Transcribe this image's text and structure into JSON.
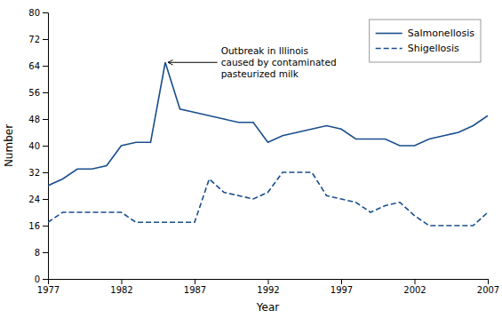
{
  "chart_data": {
    "type": "line",
    "x": [
      1977,
      1978,
      1979,
      1980,
      1981,
      1982,
      1983,
      1984,
      1985,
      1986,
      1987,
      1988,
      1989,
      1990,
      1991,
      1992,
      1993,
      1994,
      1995,
      1996,
      1997,
      1998,
      1999,
      2000,
      2001,
      2002,
      2003,
      2004,
      2005,
      2006,
      2007
    ],
    "series": [
      {
        "name": "Salmonellosis",
        "color": "#1A4E8C",
        "line_style": "solid",
        "values": [
          28,
          30,
          33,
          33,
          34,
          40,
          41,
          41,
          65,
          51,
          50,
          49,
          48,
          47,
          47,
          41,
          43,
          44,
          45,
          46,
          45,
          42,
          42,
          42,
          40,
          40,
          42,
          43,
          44,
          46,
          49
        ]
      },
      {
        "name": "Shigellosis",
        "color": "#1A4E8C",
        "line_style": "dashed",
        "values": [
          17,
          20,
          20,
          20,
          20,
          20,
          17,
          17,
          17,
          17,
          17,
          30,
          26,
          25,
          24,
          26,
          32,
          32,
          32,
          25,
          24,
          23,
          20,
          22,
          23,
          19,
          16,
          16,
          16,
          16,
          20
        ]
      }
    ],
    "xlabel": "Year",
    "ylabel": "Number",
    "xlim": [
      1977,
      2007
    ],
    "xticks": [
      1977,
      1982,
      1987,
      1992,
      1997,
      2002,
      2007
    ],
    "ylim": [
      0,
      80
    ],
    "yticks": [
      0,
      8,
      16,
      24,
      32,
      40,
      48,
      56,
      64,
      72,
      80
    ],
    "grid": false,
    "legend": "upper right",
    "annotations": [
      {
        "text": "Outbreak in Illinois\ncaused by contaminated\npasteurized milk",
        "x": 1985,
        "y": 65,
        "text_x": 1988.8,
        "text_y": 65
      }
    ]
  }
}
